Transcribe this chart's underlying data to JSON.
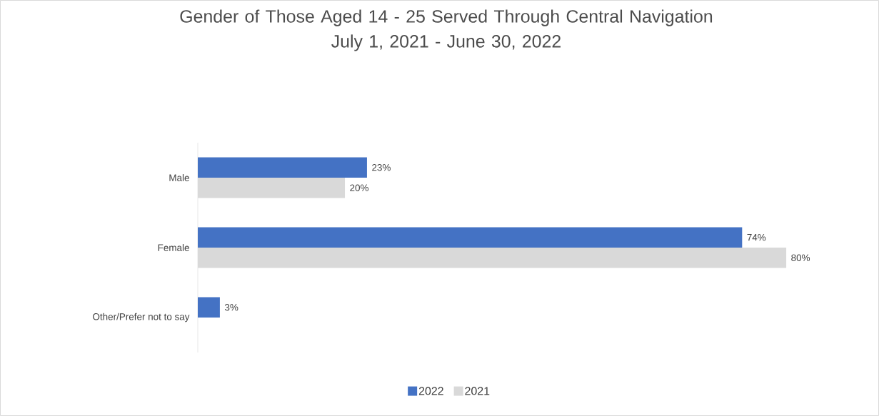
{
  "chart_data": {
    "type": "bar",
    "orientation": "horizontal",
    "title": "Gender of Those Aged 14 - 25 Served Through Central Navigation",
    "subtitle": "July 1, 2021 - June 30, 2022",
    "categories": [
      "Male",
      "Female",
      "Other/Prefer not to say"
    ],
    "series": [
      {
        "name": "2022",
        "color": "#4472c4",
        "values": [
          23,
          74,
          3
        ],
        "value_labels": [
          "23%",
          "74%",
          "3%"
        ]
      },
      {
        "name": "2021",
        "color": "#d9d9d9",
        "values": [
          20,
          80,
          null
        ],
        "value_labels": [
          "20%",
          "80%",
          null
        ]
      }
    ],
    "legend": "bottom"
  }
}
